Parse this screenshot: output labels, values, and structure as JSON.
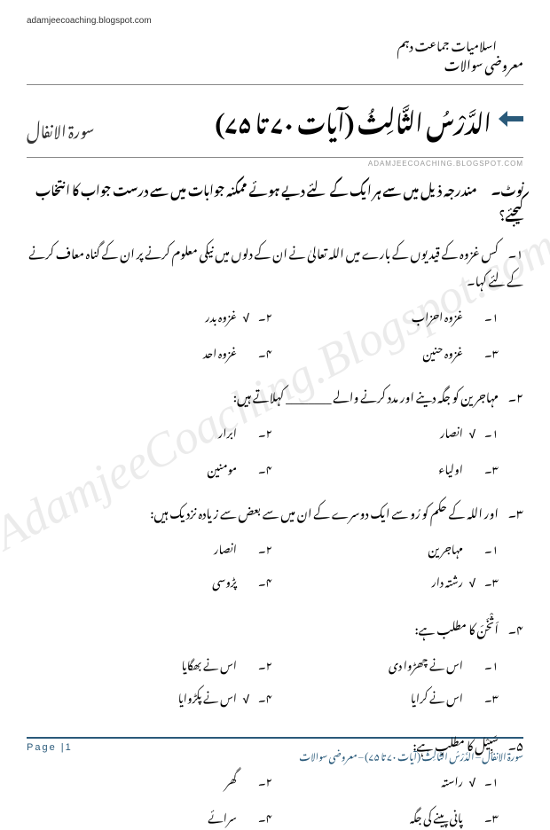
{
  "header": {
    "url_top": "adamjeecoaching.blogspot.com",
    "subject": "اسلامیات جماعت دہم",
    "section_type": "معروضی سوالات",
    "title": "الدَّرْسُ الثَّالِثُ (آیات ۷۰ تا ۷۵)",
    "surah": "سورۃ الانفال",
    "url_mid": "ADAMJEECOACHING.BLOGSPOT.COM",
    "watermark": "AdamjeeCoaching.Blogspot.com"
  },
  "note": {
    "label": "نوٹ۔",
    "text": "مندرجہ ذیل میں سے ہر ایک کے لئے دیے ہوئے ممکنہ جوابات میں سے درست جواب کا انتخاب کیجئے؟"
  },
  "questions": [
    {
      "num": "۱۔",
      "text": "کس غزوہ کے قیدیوں کے بارے میں اللہ تعالیٰ نے ان کے دلوں میں نیکی معلوم کرنے پر ان کے گناہ معاف کرنے کے لئے کہا۔",
      "opts": [
        {
          "n": "۱۔",
          "t": "غزوہ احزاب",
          "c": false
        },
        {
          "n": "۲۔",
          "t": "غزوہ بدر",
          "c": true
        },
        {
          "n": "۳۔",
          "t": "غزوہ حنین",
          "c": false
        },
        {
          "n": "۴۔",
          "t": "غزوہ احد",
          "c": false
        }
      ]
    },
    {
      "num": "۲۔",
      "text": "مہاجرین کو جگہ دینے اور مدد کرنے والے ________ کہلاتے ہیں:",
      "opts": [
        {
          "n": "۱۔",
          "t": "انصار",
          "c": true
        },
        {
          "n": "۲۔",
          "t": "ابرار",
          "c": false
        },
        {
          "n": "۳۔",
          "t": "اولیاء",
          "c": false
        },
        {
          "n": "۴۔",
          "t": "مومنین",
          "c": false
        }
      ]
    },
    {
      "num": "۳۔",
      "text": "اور اللہ کے حکم کو رُو سے ایک دوسرے کے ان میں سے بعض سے زیادہ نزدیک ہیں:",
      "opts": [
        {
          "n": "۱۔",
          "t": "مہاجرین",
          "c": false
        },
        {
          "n": "۲۔",
          "t": "انصار",
          "c": false
        },
        {
          "n": "۳۔",
          "t": "رشتہ دار",
          "c": true
        },
        {
          "n": "۴۔",
          "t": "پڑوسی",
          "c": false
        }
      ]
    },
    {
      "num": "۴۔",
      "text": "اَثْخَنَ کا مطلب ہے:",
      "opts": [
        {
          "n": "۱۔",
          "t": "اس نے چھڑوا دی",
          "c": false
        },
        {
          "n": "۲۔",
          "t": "اس نے بھگایا",
          "c": false
        },
        {
          "n": "۳۔",
          "t": "اس نے کرایا",
          "c": false
        },
        {
          "n": "۴۔",
          "t": "اس نے پکڑوایا",
          "c": true
        }
      ]
    },
    {
      "num": "۵۔",
      "text": "سَبِیْل کا مطلب ہے:",
      "opts": [
        {
          "n": "۱۔",
          "t": "راستہ",
          "c": true
        },
        {
          "n": "۲۔",
          "t": "گھر",
          "c": false
        },
        {
          "n": "۳۔",
          "t": "پانی پینے کی جگہ",
          "c": false
        },
        {
          "n": "۴۔",
          "t": "سرائے",
          "c": false
        }
      ]
    }
  ],
  "footer": {
    "right": "سورۃ الانفال – الدَّرْسُ الثَّالِثُ (آیات ۷۰ تا ۷۵) – معروضی سوالات",
    "page": "Page |1"
  },
  "colors": {
    "accent": "#2a5a7a"
  }
}
